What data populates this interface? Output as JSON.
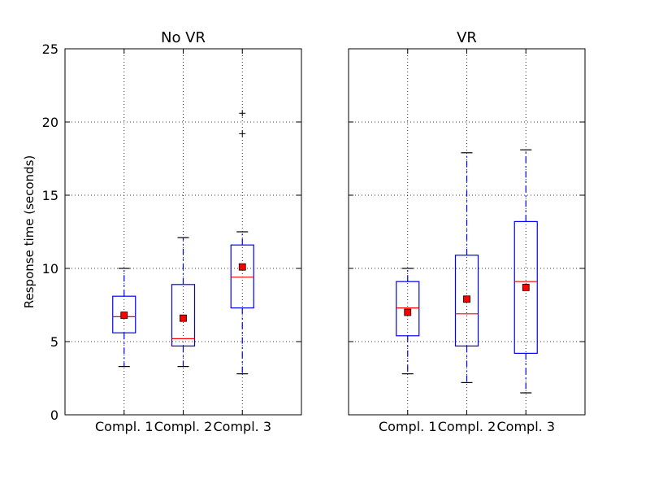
{
  "chart_data": {
    "type": "boxplot",
    "ylabel": "Response time (seconds)",
    "ylim": [
      0,
      25
    ],
    "yticks": [
      0,
      5,
      10,
      15,
      20,
      25
    ],
    "grid": true,
    "shared_y": true,
    "categories": [
      "Compl. 1",
      "Compl. 2",
      "Compl. 3"
    ],
    "colors": {
      "box": "#0000ff",
      "median": "#ff0000",
      "mean_marker": "#ff0000",
      "caps": "#000000",
      "grid": "#000000"
    },
    "panels": [
      {
        "title": "No VR",
        "boxes": [
          {
            "category": "Compl. 1",
            "whisker_low": 3.3,
            "q1": 5.6,
            "median": 6.7,
            "q3": 8.1,
            "whisker_high": 10.0,
            "mean": 6.8,
            "outliers": []
          },
          {
            "category": "Compl. 2",
            "whisker_low": 3.3,
            "q1": 4.7,
            "median": 5.2,
            "q3": 8.9,
            "whisker_high": 12.1,
            "mean": 6.6,
            "outliers": []
          },
          {
            "category": "Compl. 3",
            "whisker_low": 2.8,
            "q1": 7.3,
            "median": 9.4,
            "q3": 11.6,
            "whisker_high": 12.5,
            "mean": 10.1,
            "outliers": [
              19.2,
              20.6
            ]
          }
        ]
      },
      {
        "title": "VR",
        "boxes": [
          {
            "category": "Compl. 1",
            "whisker_low": 2.8,
            "q1": 5.4,
            "median": 7.3,
            "q3": 9.1,
            "whisker_high": 10.0,
            "mean": 7.0,
            "outliers": []
          },
          {
            "category": "Compl. 2",
            "whisker_low": 2.2,
            "q1": 4.7,
            "median": 6.9,
            "q3": 10.9,
            "whisker_high": 17.9,
            "mean": 7.9,
            "outliers": []
          },
          {
            "category": "Compl. 3",
            "whisker_low": 1.5,
            "q1": 4.2,
            "median": 9.1,
            "q3": 13.2,
            "whisker_high": 18.1,
            "mean": 8.7,
            "outliers": []
          }
        ]
      }
    ]
  }
}
